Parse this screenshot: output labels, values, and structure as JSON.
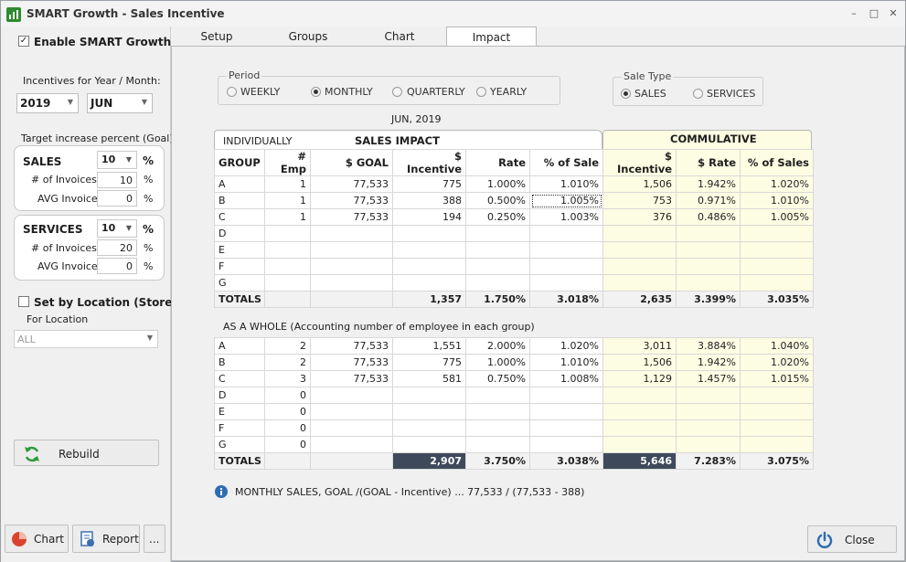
{
  "window": {
    "title": "SMART Growth - Sales Incentive",
    "buttons": [
      "–",
      "□",
      "✕"
    ]
  },
  "left": {
    "enable_label": "Enable SMART Growth",
    "enable_checked": true,
    "incentives_label": "Incentives for Year / Month:",
    "year": "2019",
    "month": "JUN",
    "target_label": "Target increase percent (Goal)",
    "sales": {
      "title": "SALES",
      "pct": "10",
      "pct_sign": "%",
      "invoices_label": "# of Invoices",
      "invoices": "10",
      "avg_label": "AVG Invoice",
      "avg": "0"
    },
    "services": {
      "title": "SERVICES",
      "pct": "10",
      "pct_sign": "%",
      "invoices_label": "# of Invoices",
      "invoices": "20",
      "avg_label": "AVG Invoice",
      "avg": "0"
    },
    "set_by_location_label": "Set by Location (Store)",
    "for_location_label": "For Location",
    "location": "ALL",
    "rebuild_label": "Rebuild",
    "chart_label": "Chart",
    "report_label": "Report",
    "more_label": "..."
  },
  "tabs": [
    "Setup",
    "Groups",
    "Chart",
    "Impact"
  ],
  "active_tab": "Impact",
  "period": {
    "legend": "Period",
    "options": [
      "WEEKLY",
      "MONTHLY",
      "QUARTERLY",
      "YEARLY"
    ],
    "selected": "MONTHLY"
  },
  "sale_type": {
    "legend": "Sale Type",
    "options": [
      "SALES",
      "SERVICES"
    ],
    "selected": "SALES"
  },
  "date_label": "JUN, 2019",
  "individually": {
    "tab_label": "INDIVIDUALLY",
    "title": "SALES IMPACT",
    "commulative_title": "COMMULATIVE",
    "headers": [
      "GROUP",
      "# Emp",
      "$ GOAL",
      "$ Incentive",
      "Rate",
      "% of Sale",
      "$ Incentive",
      "$ Rate",
      "% of Sales"
    ],
    "rows": [
      [
        "A",
        "1",
        "77,533",
        "775",
        "1.000%",
        "1.010%",
        "1,506",
        "1.942%",
        "1.020%"
      ],
      [
        "B",
        "1",
        "77,533",
        "388",
        "0.500%",
        "1.005%",
        "753",
        "0.971%",
        "1.010%"
      ],
      [
        "C",
        "1",
        "77,533",
        "194",
        "0.250%",
        "1.003%",
        "376",
        "0.486%",
        "1.005%"
      ],
      [
        "D",
        "",
        "",
        "",
        "",
        "",
        "",
        "",
        ""
      ],
      [
        "E",
        "",
        "",
        "",
        "",
        "",
        "",
        "",
        ""
      ],
      [
        "F",
        "",
        "",
        "",
        "",
        "",
        "",
        "",
        ""
      ],
      [
        "G",
        "",
        "",
        "",
        "",
        "",
        "",
        "",
        ""
      ]
    ],
    "totals": [
      "TOTALS",
      "",
      "",
      "1,357",
      "1.750%",
      "3.018%",
      "2,635",
      "3.399%",
      "3.035%"
    ]
  },
  "whole": {
    "label": "AS A WHOLE   (Accounting number of employee in each group)",
    "rows": [
      [
        "A",
        "2",
        "77,533",
        "1,551",
        "2.000%",
        "1.020%",
        "3,011",
        "3.884%",
        "1.040%"
      ],
      [
        "B",
        "2",
        "77,533",
        "775",
        "1.000%",
        "1.010%",
        "1,506",
        "1.942%",
        "1.020%"
      ],
      [
        "C",
        "3",
        "77,533",
        "581",
        "0.750%",
        "1.008%",
        "1,129",
        "1.457%",
        "1.015%"
      ],
      [
        "D",
        "0",
        "",
        "",
        "",
        "",
        "",
        "",
        ""
      ],
      [
        "E",
        "0",
        "",
        "",
        "",
        "",
        "",
        "",
        ""
      ],
      [
        "F",
        "0",
        "",
        "",
        "",
        "",
        "",
        "",
        ""
      ],
      [
        "G",
        "0",
        "",
        "",
        "",
        "",
        "",
        "",
        ""
      ]
    ],
    "totals": [
      "TOTALS",
      "",
      "",
      "2,907",
      "3.750%",
      "3.038%",
      "5,646",
      "7.283%",
      "3.075%"
    ]
  },
  "info_text": "MONTHLY SALES,  GOAL /(GOAL - Incentive)   ...  77,533 / (77,533 - 388)",
  "close_label": "Close",
  "colors": {
    "cum_bg": "#fdfde3",
    "dark_total": "#3e4a5c",
    "app_icon": "#2e8b2e",
    "info_icon": "#2f6db3",
    "chart_icon": "#d9432f",
    "rebuild_icon": "#2e9a3a"
  }
}
